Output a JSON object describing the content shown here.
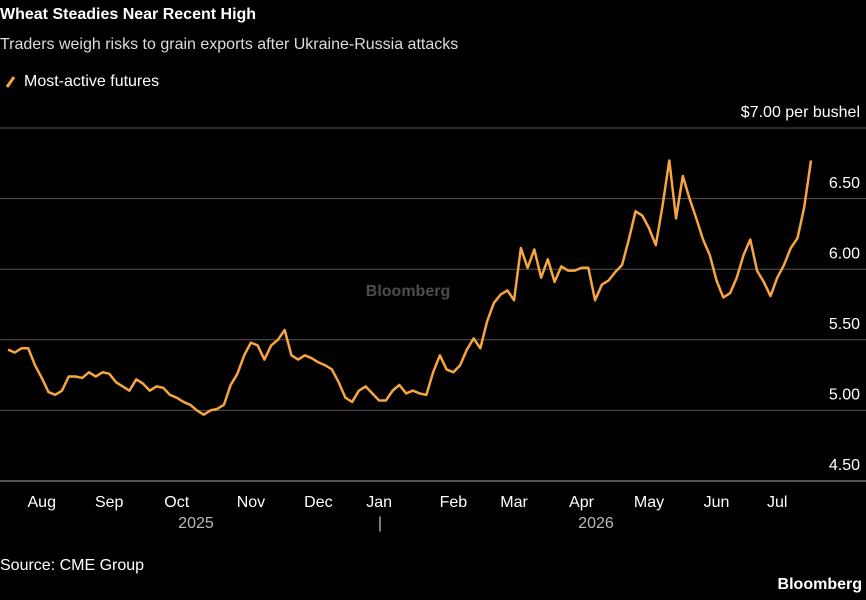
{
  "chart_data": {
    "type": "line",
    "title": "Wheat Steadies Near Recent High",
    "subtitle": "Traders weigh risks to grain exports after Ukraine-Russia attacks",
    "categories": [
      null,
      null,
      null,
      null,
      null,
      "Aug",
      null,
      null,
      null,
      null,
      null,
      null,
      null,
      null,
      null,
      "Sep",
      null,
      null,
      null,
      null,
      null,
      null,
      null,
      null,
      null,
      "Oct",
      null,
      null,
      null,
      null,
      null,
      null,
      null,
      null,
      null,
      null,
      "Nov",
      null,
      null,
      null,
      null,
      null,
      null,
      null,
      null,
      null,
      "Dec",
      null,
      null,
      null,
      null,
      null,
      null,
      null,
      null,
      "Jan",
      null,
      null,
      null,
      null,
      null,
      null,
      null,
      null,
      null,
      null,
      "Feb",
      null,
      null,
      null,
      null,
      null,
      null,
      null,
      null,
      "Mar",
      null,
      null,
      null,
      null,
      null,
      null,
      null,
      null,
      null,
      "Apr",
      null,
      null,
      null,
      null,
      null,
      null,
      null,
      null,
      null,
      "May",
      null,
      null,
      null,
      null,
      null,
      null,
      null,
      null,
      null,
      "Jun",
      null,
      null,
      null,
      null,
      null,
      null,
      null,
      null,
      "Jul",
      null,
      null,
      null,
      null,
      null
    ],
    "series": [
      {
        "name": "Most-active futures",
        "color": "#f7a541",
        "values": [
          5.43,
          5.41,
          5.44,
          5.44,
          5.32,
          5.23,
          5.13,
          5.11,
          5.14,
          5.24,
          5.24,
          5.23,
          5.27,
          5.24,
          5.27,
          5.26,
          5.2,
          5.17,
          5.14,
          5.22,
          5.19,
          5.14,
          5.17,
          5.16,
          5.11,
          5.09,
          5.06,
          5.04,
          5.0,
          4.97,
          5.0,
          5.01,
          5.04,
          5.18,
          5.26,
          5.39,
          5.48,
          5.46,
          5.36,
          5.46,
          5.5,
          5.57,
          5.39,
          5.36,
          5.39,
          5.37,
          5.34,
          5.32,
          5.29,
          5.2,
          5.09,
          5.06,
          5.14,
          5.17,
          5.12,
          5.07,
          5.07,
          5.14,
          5.18,
          5.12,
          5.14,
          5.12,
          5.11,
          5.27,
          5.39,
          5.29,
          5.27,
          5.32,
          5.43,
          5.51,
          5.44,
          5.63,
          5.76,
          5.82,
          5.85,
          5.78,
          6.15,
          6.01,
          6.14,
          5.94,
          6.07,
          5.91,
          6.02,
          5.99,
          5.99,
          6.01,
          6.01,
          5.78,
          5.89,
          5.92,
          5.98,
          6.03,
          6.21,
          6.41,
          6.38,
          6.29,
          6.17,
          6.45,
          6.77,
          6.36,
          6.66,
          6.5,
          6.36,
          6.21,
          6.1,
          5.92,
          5.8,
          5.83,
          5.94,
          6.1,
          6.21,
          5.99,
          5.91,
          5.81,
          5.94,
          6.03,
          6.15,
          6.22,
          6.44,
          6.77
        ]
      }
    ],
    "ylim": [
      4.5,
      7.0
    ],
    "yticks": [
      {
        "value": 4.5,
        "label": "4.50"
      },
      {
        "value": 5,
        "label": "5.00"
      },
      {
        "value": 5.5,
        "label": "5.50"
      },
      {
        "value": 6,
        "label": "6.00"
      },
      {
        "value": 6.5,
        "label": "6.50"
      },
      {
        "value": 7,
        "label": "$7.00 per bushel"
      }
    ],
    "grid": true,
    "years": [
      "2025",
      "2026"
    ],
    "year_divider": "|",
    "watermark": "Bloomberg",
    "source": "Source: CME Group",
    "logo": "Bloomberg"
  }
}
